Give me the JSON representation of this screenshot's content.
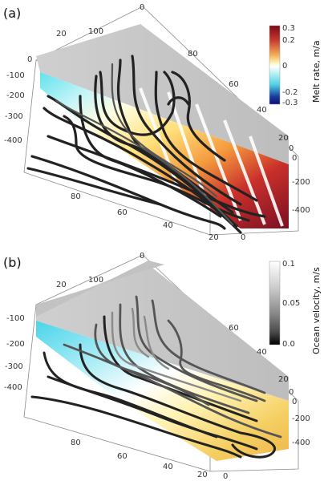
{
  "panels": [
    {
      "id": "a",
      "label": "(a)",
      "colorbar": {
        "title": "Melt rate, m/a",
        "ticks": [
          "0.3",
          "0.2",
          "0",
          "-0.2",
          "-0.3"
        ],
        "colors": [
          "#7a0a14",
          "#c3392d",
          "#f4b35c",
          "#fff7c2",
          "#ffffff",
          "#bff1f4",
          "#4fd2e6",
          "#1a3f9e",
          "#0c0f73"
        ]
      },
      "axis_top": [
        "0",
        "100",
        "20"
      ],
      "axis_right": [
        "80",
        "60",
        "40",
        "20",
        "0",
        "0",
        "-200",
        "-400"
      ],
      "axis_left": [
        "0",
        "-100",
        "-200",
        "-300",
        "-400"
      ],
      "axis_bottom": [
        "80",
        "60",
        "40",
        "20",
        "0"
      ]
    },
    {
      "id": "b",
      "label": "(b)",
      "colorbar": {
        "title": "Ocean velocity, m/s",
        "ticks": [
          "0.1",
          "0.05",
          "0.0"
        ],
        "colors": [
          "#ffffff",
          "#cfcfcf",
          "#8e8e8e",
          "#4a4a4a",
          "#000000"
        ]
      },
      "axis_top": [
        "0",
        "100",
        "20"
      ],
      "axis_right": [
        "60",
        "40",
        "20",
        "0",
        "0",
        "-200",
        "-400"
      ],
      "axis_left": [
        "-100",
        "-200",
        "-300",
        "-400"
      ],
      "axis_bottom": [
        "80",
        "60",
        "40",
        "20",
        "0"
      ]
    }
  ]
}
